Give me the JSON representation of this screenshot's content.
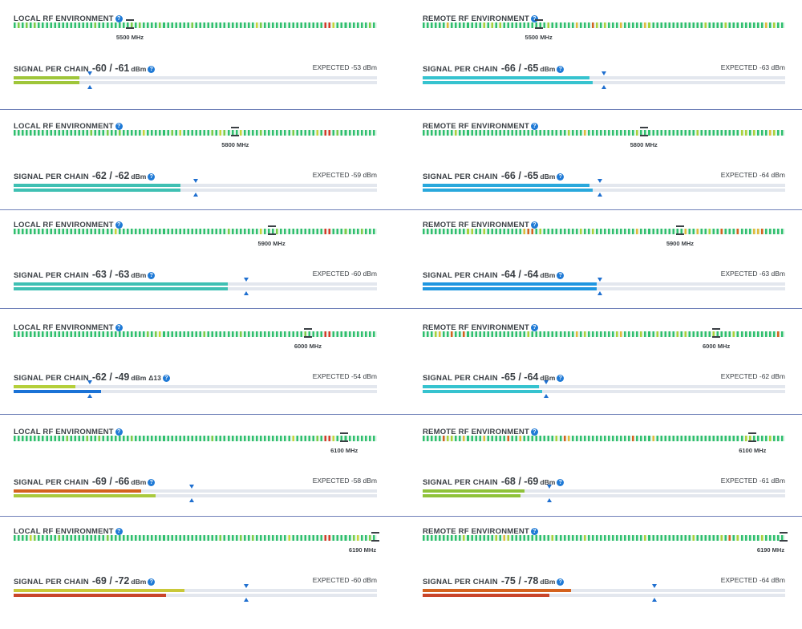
{
  "colors": {
    "separator": "#6f80b8",
    "accent_blue": "#1f6fd0"
  },
  "sections": [
    {
      "local": {
        "label": "LOCAL RF ENVIRONMENT",
        "help_icon": "help-icon",
        "freq": "5500 MHz",
        "marker_frac": 0.32,
        "signal_label": "SIGNAL PER CHAIN",
        "signal_value": "-60 / -61",
        "unit": "dBm",
        "delta": "",
        "expected": "EXPECTED -53 dBm",
        "chain1": {
          "frac": 0.18,
          "color": "#9fc63a"
        },
        "chain2": {
          "frac": 0.18,
          "color": "#9fc63a"
        },
        "expected_frac": 0.21
      },
      "remote": {
        "label": "REMOTE RF ENVIRONMENT",
        "help_icon": "help-icon",
        "freq": "5500 MHz",
        "marker_frac": 0.32,
        "signal_label": "SIGNAL PER CHAIN",
        "signal_value": "-66 / -65",
        "unit": "dBm",
        "delta": "",
        "expected": "EXPECTED -63 dBm",
        "chain1": {
          "frac": 0.46,
          "color": "#36c3cf"
        },
        "chain2": {
          "frac": 0.47,
          "color": "#36c3cf"
        },
        "expected_frac": 0.5
      }
    },
    {
      "local": {
        "label": "LOCAL RF ENVIRONMENT",
        "help_icon": "help-icon",
        "freq": "5800 MHz",
        "marker_frac": 0.61,
        "signal_label": "SIGNAL PER CHAIN",
        "signal_value": "-62 / -62",
        "unit": "dBm",
        "delta": "",
        "expected": "EXPECTED -59 dBm",
        "chain1": {
          "frac": 0.46,
          "color": "#3fc0b3"
        },
        "chain2": {
          "frac": 0.46,
          "color": "#3fc0b3"
        },
        "expected_frac": 0.5
      },
      "remote": {
        "label": "REMOTE RF ENVIRONMENT",
        "help_icon": "help-icon",
        "freq": "5800 MHz",
        "marker_frac": 0.61,
        "signal_label": "SIGNAL PER CHAIN",
        "signal_value": "-66 / -65",
        "unit": "dBm",
        "delta": "",
        "expected": "EXPECTED -64 dBm",
        "chain1": {
          "frac": 0.46,
          "color": "#29a8dc"
        },
        "chain2": {
          "frac": 0.47,
          "color": "#29a8dc"
        },
        "expected_frac": 0.49
      }
    },
    {
      "local": {
        "label": "LOCAL RF ENVIRONMENT",
        "help_icon": "help-icon",
        "freq": "5900 MHz",
        "marker_frac": 0.71,
        "signal_label": "SIGNAL PER CHAIN",
        "signal_value": "-63 / -63",
        "unit": "dBm",
        "delta": "",
        "expected": "EXPECTED -60 dBm",
        "chain1": {
          "frac": 0.59,
          "color": "#3fc0b3"
        },
        "chain2": {
          "frac": 0.59,
          "color": "#3fc0b3"
        },
        "expected_frac": 0.64
      },
      "remote": {
        "label": "REMOTE RF ENVIRONMENT",
        "help_icon": "help-icon",
        "freq": "5900 MHz",
        "marker_frac": 0.71,
        "signal_label": "SIGNAL PER CHAIN",
        "signal_value": "-64 / -64",
        "unit": "dBm",
        "delta": "",
        "expected": "EXPECTED -63 dBm",
        "chain1": {
          "frac": 0.48,
          "color": "#1f96e0"
        },
        "chain2": {
          "frac": 0.48,
          "color": "#1f96e0"
        },
        "expected_frac": 0.49
      }
    },
    {
      "local": {
        "label": "LOCAL RF ENVIRONMENT",
        "help_icon": "help-icon",
        "freq": "6000 MHz",
        "marker_frac": 0.81,
        "signal_label": "SIGNAL PER CHAIN",
        "signal_value": "-62 / -49",
        "unit": "dBm",
        "delta": "Δ13",
        "expected": "EXPECTED -54 dBm",
        "chain1": {
          "frac": 0.17,
          "color": "#b5cf3a"
        },
        "chain2": {
          "frac": 0.24,
          "color": "#1a72d6"
        },
        "expected_frac": 0.21
      },
      "remote": {
        "label": "REMOTE RF ENVIRONMENT",
        "help_icon": "help-icon",
        "freq": "6000 MHz",
        "marker_frac": 0.81,
        "signal_label": "SIGNAL PER CHAIN",
        "signal_value": "-65 / -64",
        "unit": "dBm",
        "delta": "",
        "expected": "EXPECTED -62 dBm",
        "chain1": {
          "frac": 0.32,
          "color": "#36c3cf"
        },
        "chain2": {
          "frac": 0.33,
          "color": "#36c3cf"
        },
        "expected_frac": 0.34
      }
    },
    {
      "local": {
        "label": "LOCAL RF ENVIRONMENT",
        "help_icon": "help-icon",
        "freq": "6100 MHz",
        "marker_frac": 0.91,
        "signal_label": "SIGNAL PER CHAIN",
        "signal_value": "-69 / -66",
        "unit": "dBm",
        "delta": "",
        "expected": "EXPECTED -58 dBm",
        "chain1": {
          "frac": 0.35,
          "color": "#d4621e"
        },
        "chain2": {
          "frac": 0.39,
          "color": "#a9c93d"
        },
        "expected_frac": 0.49
      },
      "remote": {
        "label": "REMOTE RF ENVIRONMENT",
        "help_icon": "help-icon",
        "freq": "6100 MHz",
        "marker_frac": 0.91,
        "signal_label": "SIGNAL PER CHAIN",
        "signal_value": "-68 / -69",
        "unit": "dBm",
        "delta": "",
        "expected": "EXPECTED -61 dBm",
        "chain1": {
          "frac": 0.28,
          "color": "#8fc23a"
        },
        "chain2": {
          "frac": 0.27,
          "color": "#8fc23a"
        },
        "expected_frac": 0.35
      }
    },
    {
      "local": {
        "label": "LOCAL RF ENVIRONMENT",
        "help_icon": "help-icon",
        "freq": "6190 MHz",
        "marker_frac": 0.995,
        "signal_label": "SIGNAL PER CHAIN",
        "signal_value": "-69 / -72",
        "unit": "dBm",
        "delta": "",
        "expected": "EXPECTED -60 dBm",
        "chain1": {
          "frac": 0.47,
          "color": "#c9c838"
        },
        "chain2": {
          "frac": 0.42,
          "color": "#c9452a"
        },
        "expected_frac": 0.64
      },
      "remote": {
        "label": "REMOTE RF ENVIRONMENT",
        "help_icon": "help-icon",
        "freq": "6190 MHz",
        "marker_frac": 0.995,
        "signal_label": "SIGNAL PER CHAIN",
        "signal_value": "-75 / -78",
        "unit": "dBm",
        "delta": "",
        "expected": "EXPECTED -64 dBm",
        "chain1": {
          "frac": 0.41,
          "color": "#d4621e"
        },
        "chain2": {
          "frac": 0.35,
          "color": "#c9452a"
        },
        "expected_frac": 0.64
      }
    }
  ]
}
